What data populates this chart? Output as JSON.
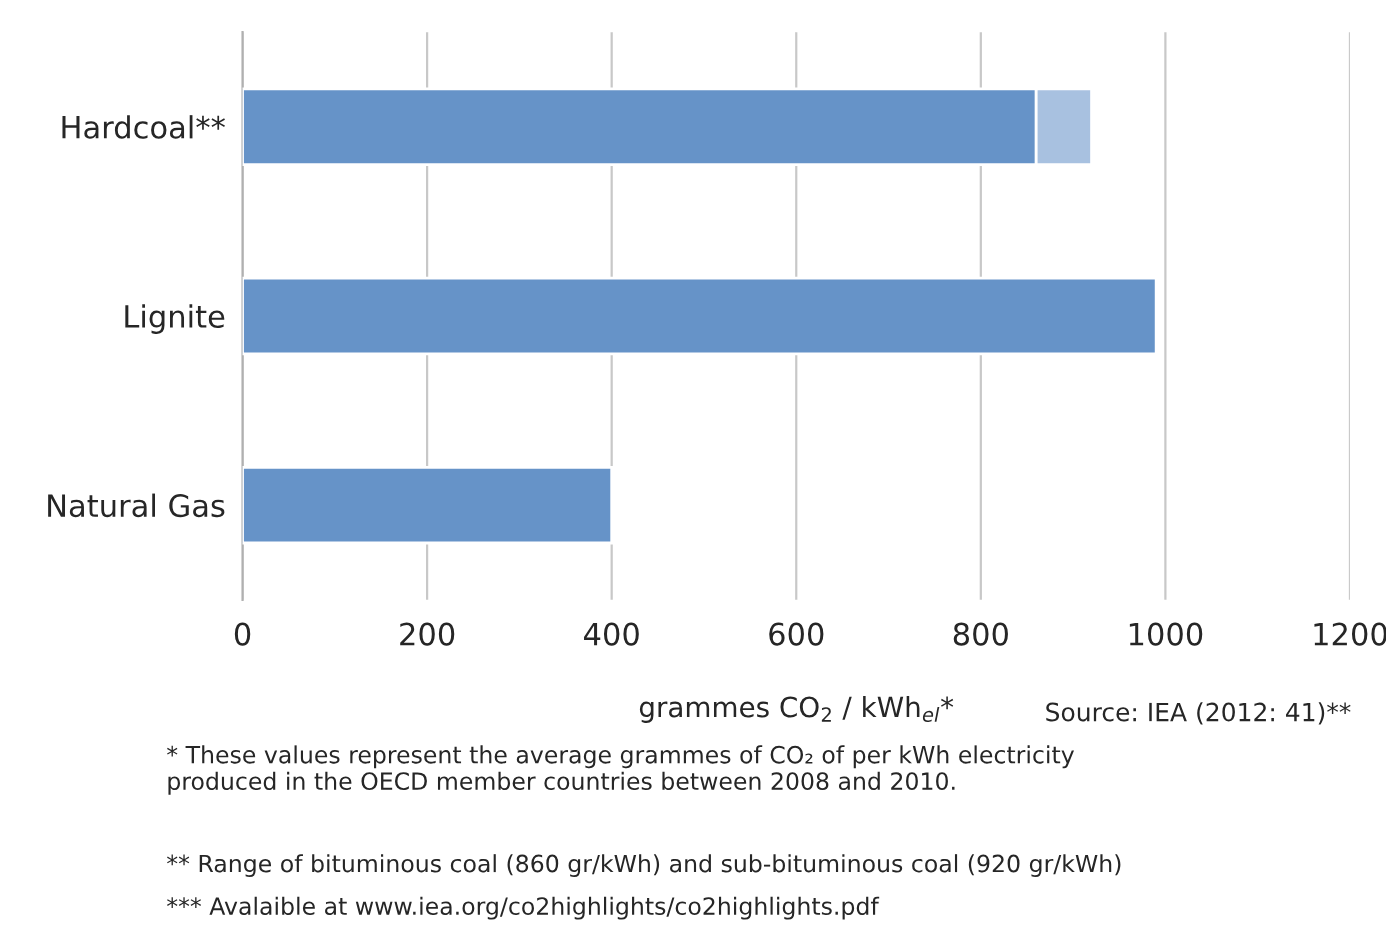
{
  "chart_data": {
    "type": "bar",
    "orientation": "horizontal",
    "stacked": true,
    "categories": [
      "Hardcoal**",
      "Lignite",
      "Natural Gas"
    ],
    "series": [
      {
        "color": "#6693c8",
        "values": [
          860,
          990,
          400
        ]
      },
      {
        "color": "#a8c1e0",
        "values": [
          60,
          null,
          null
        ]
      }
    ],
    "xlim": [
      0,
      1200
    ],
    "xticks": [
      0,
      200,
      400,
      600,
      800,
      1000,
      1200
    ],
    "grid": "x",
    "xlabel": "grammes CO$_{2}$ / kWh$_{el}$*",
    "annotations": [
      "Source: IEA (2012: 41)**",
      "* These values represent the average grammes of CO₂ of per kWh electricity\nproduced in the OECD member countries between 2008 and 2010.",
      "** Range of bituminous coal (860 gr/kWh) and sub-bituminous coal (920 gr/kWh)",
      "*** Avalaible at www.iea.org/co2highlights/co2highlights.pdf"
    ]
  }
}
